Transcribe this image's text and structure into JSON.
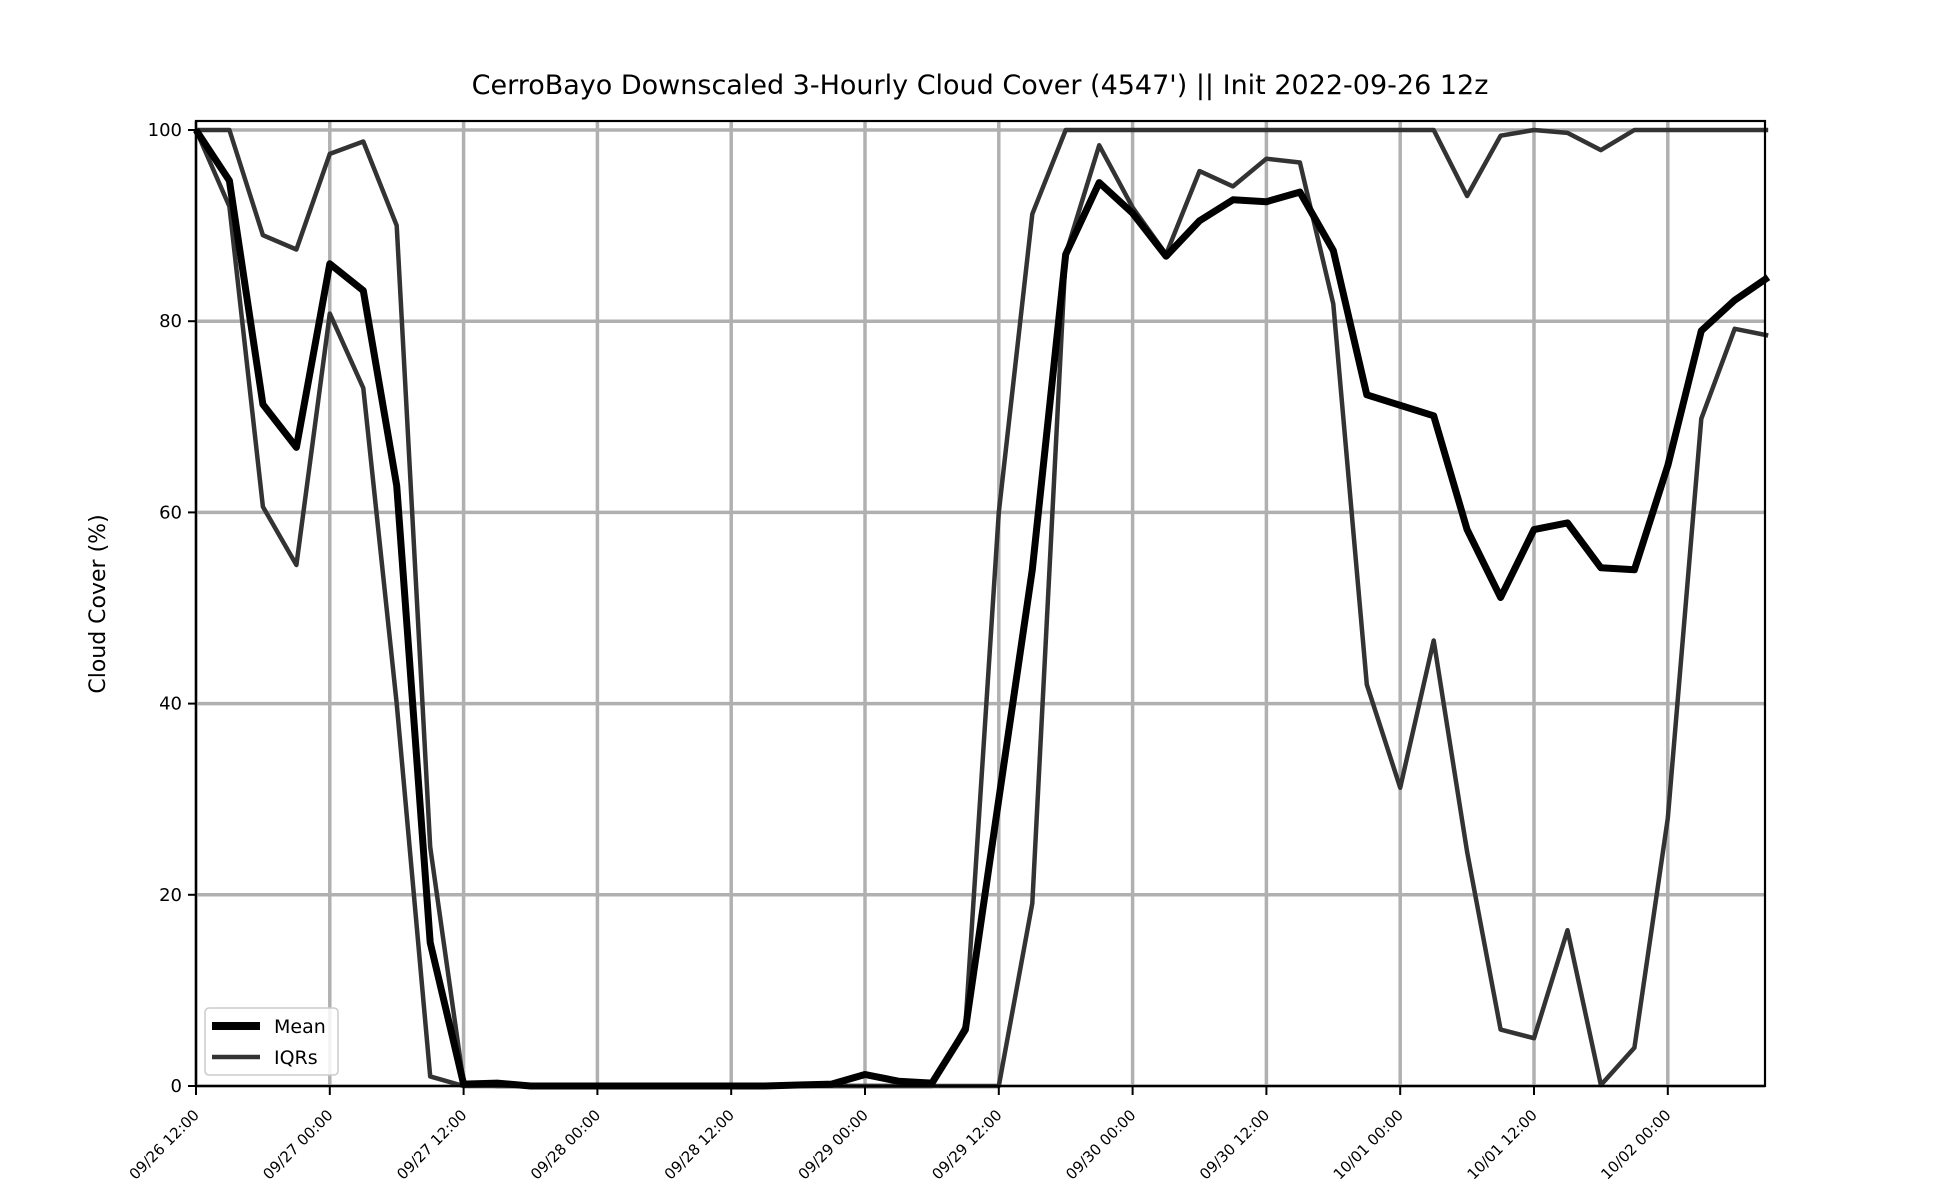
{
  "chart_data": {
    "type": "line",
    "title": "CerroBayo Downscaled 3-Hourly Cloud Cover (4547') || Init 2022-09-26 12z",
    "xlabel": "",
    "ylabel": "Cloud Cover (%)",
    "ylim": [
      0,
      100
    ],
    "yticks": [
      0,
      20,
      40,
      60,
      80,
      100
    ],
    "xtick_labels": [
      "09/26 12:00",
      "09/27 00:00",
      "09/27 12:00",
      "09/28 00:00",
      "09/28 12:00",
      "09/29 00:00",
      "09/29 12:00",
      "09/30 00:00",
      "09/30 12:00",
      "10/01 00:00",
      "10/01 12:00",
      "10/02 00:00"
    ],
    "x_step_hours": 3,
    "grid": true,
    "legend_position": "lower-left",
    "legend": [
      "Mean",
      "IQRs"
    ],
    "series": [
      {
        "name": "Mean",
        "color": "#000000",
        "values": [
          100,
          94.7,
          71.3,
          66.8,
          86.0,
          83.2,
          62.8,
          15.0,
          0.2,
          0.3,
          0,
          0,
          0,
          0,
          0,
          0,
          0,
          0,
          0.1,
          0.2,
          1.2,
          0.5,
          0.3,
          5.9,
          30.0,
          54.0,
          87.0,
          94.5,
          91.3,
          86.8,
          90.5,
          92.7,
          92.5,
          93.5,
          87.4,
          72.3,
          71.2,
          70.1,
          58.2,
          51.1,
          58.2,
          58.9,
          54.2,
          54.0,
          64.9,
          79.0,
          82.2,
          84.6
        ]
      },
      {
        "name": "IQRs",
        "color": "#333333",
        "values": [
          100,
          92.0,
          60.6,
          54.5,
          80.8,
          73.0,
          40.0,
          1.0,
          0,
          0,
          0,
          0,
          0,
          0,
          0,
          0,
          0,
          0,
          0,
          0,
          0,
          0,
          0,
          0,
          0,
          19.1,
          87.0,
          98.4,
          91.9,
          87.0,
          95.7,
          94.1,
          97.0,
          96.6,
          81.8,
          42.0,
          31.2,
          46.6,
          24.5,
          5.9,
          5.0,
          16.3,
          0.1,
          4.0,
          28.0,
          69.8,
          79.2,
          78.5
        ]
      },
      {
        "name": "",
        "color": "#333333",
        "values": [
          100,
          100,
          89.0,
          87.5,
          97.5,
          98.8,
          90.0,
          25.0,
          0.3,
          0,
          0,
          0,
          0,
          0,
          0,
          0,
          0,
          0,
          0,
          0,
          0,
          0,
          0,
          6.3,
          60.0,
          91.2,
          100,
          100,
          100,
          100,
          100,
          100,
          100,
          100,
          100,
          100,
          100,
          100,
          93.1,
          99.4,
          100,
          99.7,
          97.9,
          100,
          100,
          100,
          100,
          100
        ]
      }
    ]
  }
}
